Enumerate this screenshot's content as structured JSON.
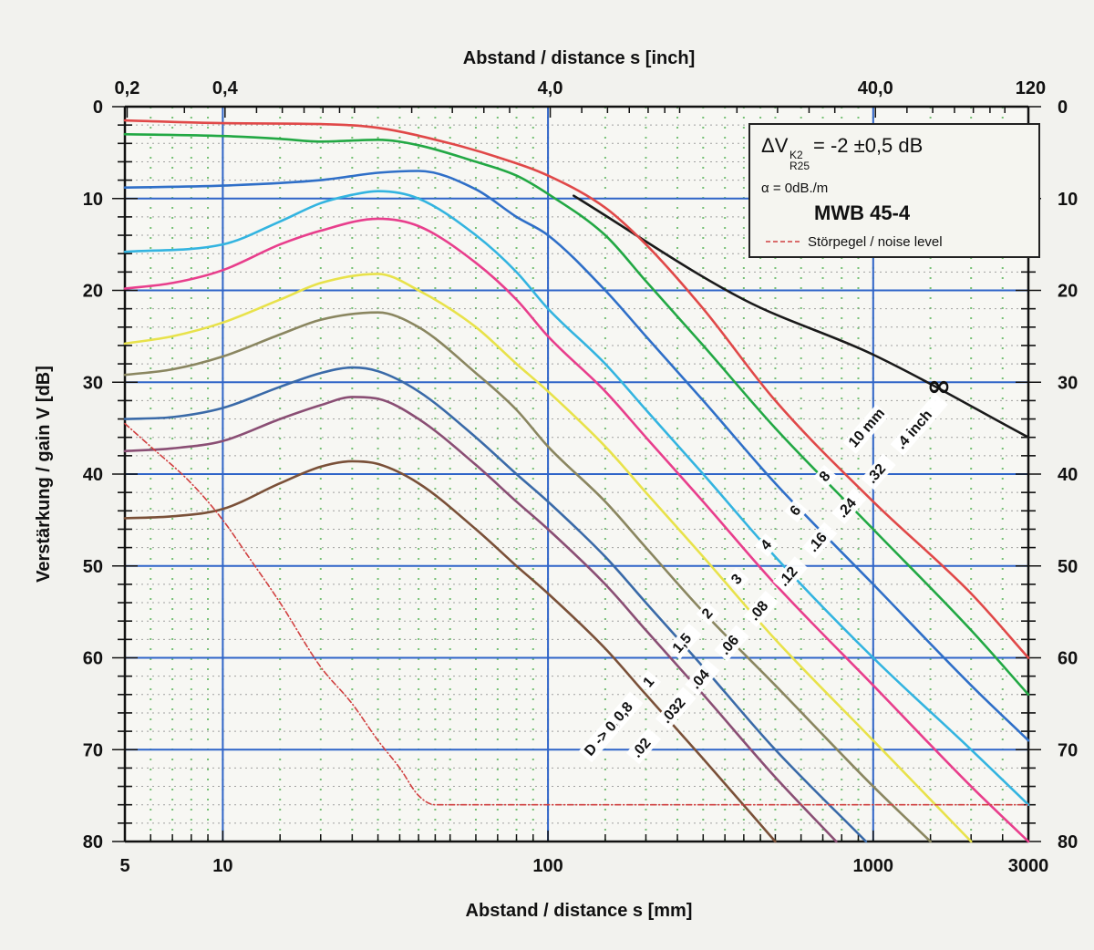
{
  "chart_data": {
    "type": "line",
    "title": "",
    "xlabel": "Abstand / distance s [mm]",
    "x2label": "Abstand / distance s [inch]",
    "ylabel": "Verstärkung / gain V [dB]",
    "xscale": "log",
    "xlim": [
      5,
      3000
    ],
    "ylim": [
      0,
      80
    ],
    "y_inverted": true,
    "grid": true,
    "x_ticks": [
      {
        "value": 5,
        "label": "5"
      },
      {
        "value": 10,
        "label": "10"
      },
      {
        "value": 100,
        "label": "100"
      },
      {
        "value": 1000,
        "label": "1000"
      },
      {
        "value": 3000,
        "label": "3000"
      }
    ],
    "x2_ticks": [
      {
        "value": 0.2,
        "label": "0,2"
      },
      {
        "value": 0.4,
        "label": "0,4"
      },
      {
        "value": 4.0,
        "label": "4,0"
      },
      {
        "value": 40.0,
        "label": "40,0"
      },
      {
        "value": 120,
        "label": "120"
      }
    ],
    "y_ticks": [
      "0",
      "10",
      "20",
      "30",
      "40",
      "50",
      "60",
      "70",
      "80"
    ],
    "legend": {
      "position": "top-right",
      "delta_main": "ΔV",
      "delta_sub1": "K2",
      "delta_sub2": "R25",
      "delta_value": "= -2 ±0,5 dB",
      "alpha": "α = 0dB./m",
      "model": "MWB 45-4",
      "noise_label": "Störpegel / noise level"
    },
    "infinity_label": "∞",
    "diameter_labels_mm": [
      "D -> 0,5",
      "0,8",
      "1",
      "1,5",
      "2",
      "3",
      "4",
      "6",
      "8",
      "10 mm"
    ],
    "diameter_labels_inch": [
      ".02",
      ".032",
      ".04",
      ".06",
      ".08",
      ".12",
      ".16",
      ".24",
      ".32",
      ".4 inch"
    ],
    "series": [
      {
        "name": "∞",
        "color": "#1a1a1a",
        "points": [
          [
            120,
            9.7
          ],
          [
            400,
            21
          ],
          [
            1000,
            27
          ],
          [
            3000,
            36
          ]
        ]
      },
      {
        "name": "10 mm",
        "color": "#e04848",
        "points": [
          [
            5,
            1.5
          ],
          [
            10,
            1.8
          ],
          [
            20,
            1.9
          ],
          [
            30,
            2.3
          ],
          [
            50,
            4
          ],
          [
            70,
            5.5
          ],
          [
            100,
            7.5
          ],
          [
            150,
            11
          ],
          [
            200,
            15
          ],
          [
            300,
            22
          ],
          [
            500,
            32
          ],
          [
            1000,
            43
          ],
          [
            2000,
            53
          ],
          [
            3000,
            60
          ]
        ]
      },
      {
        "name": "8 mm",
        "color": "#22a844",
        "points": [
          [
            5,
            3
          ],
          [
            10,
            3.2
          ],
          [
            15,
            3.5
          ],
          [
            20,
            3.8
          ],
          [
            30,
            3.6
          ],
          [
            40,
            4.2
          ],
          [
            60,
            6
          ],
          [
            80,
            7.5
          ],
          [
            100,
            9.5
          ],
          [
            150,
            14
          ],
          [
            200,
            19
          ],
          [
            300,
            26
          ],
          [
            500,
            35
          ],
          [
            1000,
            46
          ],
          [
            2000,
            57
          ],
          [
            3000,
            64
          ]
        ]
      },
      {
        "name": "6 mm",
        "color": "#2f6fc8",
        "points": [
          [
            5,
            8.8
          ],
          [
            10,
            8.6
          ],
          [
            20,
            8
          ],
          [
            30,
            7.2
          ],
          [
            40,
            7
          ],
          [
            60,
            9
          ],
          [
            80,
            12
          ],
          [
            100,
            14
          ],
          [
            150,
            20
          ],
          [
            200,
            25
          ],
          [
            300,
            32
          ],
          [
            500,
            41
          ],
          [
            1000,
            52
          ],
          [
            2000,
            63
          ],
          [
            3000,
            69
          ]
        ]
      },
      {
        "name": "4 mm",
        "color": "#33b4e0",
        "points": [
          [
            5,
            15.8
          ],
          [
            10,
            15
          ],
          [
            15,
            12.5
          ],
          [
            20,
            10.5
          ],
          [
            25,
            9.6
          ],
          [
            30,
            9.2
          ],
          [
            40,
            10
          ],
          [
            60,
            14
          ],
          [
            80,
            18
          ],
          [
            100,
            22
          ],
          [
            150,
            28
          ],
          [
            200,
            33
          ],
          [
            300,
            40
          ],
          [
            500,
            49
          ],
          [
            1000,
            60
          ],
          [
            2000,
            70
          ],
          [
            3000,
            76
          ]
        ]
      },
      {
        "name": "3 mm",
        "color": "#e83e8c",
        "points": [
          [
            5,
            19.8
          ],
          [
            7,
            19.2
          ],
          [
            10,
            17.8
          ],
          [
            15,
            15
          ],
          [
            20,
            13.5
          ],
          [
            30,
            12.2
          ],
          [
            40,
            13
          ],
          [
            60,
            17
          ],
          [
            80,
            21
          ],
          [
            100,
            25
          ],
          [
            150,
            31
          ],
          [
            200,
            36
          ],
          [
            300,
            43
          ],
          [
            500,
            52
          ],
          [
            1000,
            63
          ],
          [
            2000,
            74
          ],
          [
            3000,
            80
          ]
        ]
      },
      {
        "name": "2 mm",
        "color": "#e8e24a",
        "points": [
          [
            5,
            25.8
          ],
          [
            7,
            25
          ],
          [
            10,
            23.5
          ],
          [
            15,
            21
          ],
          [
            20,
            19.2
          ],
          [
            30,
            18.2
          ],
          [
            40,
            20
          ],
          [
            60,
            24
          ],
          [
            80,
            28
          ],
          [
            100,
            31
          ],
          [
            150,
            37
          ],
          [
            200,
            42
          ],
          [
            300,
            49
          ],
          [
            500,
            58
          ],
          [
            1000,
            69
          ],
          [
            2000,
            80
          ]
        ]
      },
      {
        "name": "1,5 mm",
        "color": "#8a8660",
        "points": [
          [
            5,
            29.2
          ],
          [
            7,
            28.6
          ],
          [
            10,
            27.2
          ],
          [
            15,
            24.8
          ],
          [
            20,
            23.2
          ],
          [
            30,
            22.4
          ],
          [
            40,
            24
          ],
          [
            60,
            29
          ],
          [
            80,
            33
          ],
          [
            100,
            37
          ],
          [
            150,
            43
          ],
          [
            200,
            48
          ],
          [
            300,
            55
          ],
          [
            500,
            63
          ],
          [
            1000,
            74
          ],
          [
            1500,
            80
          ]
        ]
      },
      {
        "name": "1 mm",
        "color": "#3a6aa8",
        "points": [
          [
            5,
            34
          ],
          [
            7,
            33.8
          ],
          [
            10,
            32.8
          ],
          [
            15,
            30.5
          ],
          [
            20,
            29
          ],
          [
            25,
            28.4
          ],
          [
            30,
            28.8
          ],
          [
            40,
            31
          ],
          [
            60,
            36
          ],
          [
            80,
            40
          ],
          [
            100,
            43
          ],
          [
            150,
            49
          ],
          [
            200,
            54
          ],
          [
            300,
            61
          ],
          [
            500,
            70
          ],
          [
            950,
            80
          ]
        ]
      },
      {
        "name": "0,8 mm",
        "color": "#8a4e74",
        "points": [
          [
            5,
            37.5
          ],
          [
            7,
            37.2
          ],
          [
            10,
            36.4
          ],
          [
            15,
            34
          ],
          [
            20,
            32.5
          ],
          [
            25,
            31.6
          ],
          [
            30,
            31.8
          ],
          [
            40,
            34
          ],
          [
            60,
            39
          ],
          [
            80,
            43
          ],
          [
            100,
            46
          ],
          [
            150,
            52
          ],
          [
            200,
            57
          ],
          [
            300,
            64
          ],
          [
            500,
            73
          ],
          [
            770,
            80
          ]
        ]
      },
      {
        "name": "0,5 mm",
        "color": "#7a5038",
        "points": [
          [
            5,
            44.8
          ],
          [
            7,
            44.6
          ],
          [
            10,
            43.8
          ],
          [
            15,
            41
          ],
          [
            20,
            39.2
          ],
          [
            25,
            38.6
          ],
          [
            30,
            38.9
          ],
          [
            40,
            41
          ],
          [
            60,
            46
          ],
          [
            80,
            50
          ],
          [
            100,
            53
          ],
          [
            150,
            59
          ],
          [
            200,
            64
          ],
          [
            300,
            71
          ],
          [
            500,
            80
          ]
        ]
      },
      {
        "name": "Störpegel / noise level",
        "color": "#d04040",
        "dashed": true,
        "points": [
          [
            5,
            34.5
          ],
          [
            6,
            37
          ],
          [
            8,
            41
          ],
          [
            10,
            45
          ],
          [
            12,
            49
          ],
          [
            15,
            54
          ],
          [
            20,
            61
          ],
          [
            25,
            65
          ],
          [
            30,
            69
          ],
          [
            35,
            72
          ],
          [
            40,
            75
          ],
          [
            45,
            76
          ],
          [
            60,
            76
          ],
          [
            100,
            76
          ],
          [
            1000,
            76
          ],
          [
            3000,
            76
          ]
        ]
      }
    ]
  }
}
